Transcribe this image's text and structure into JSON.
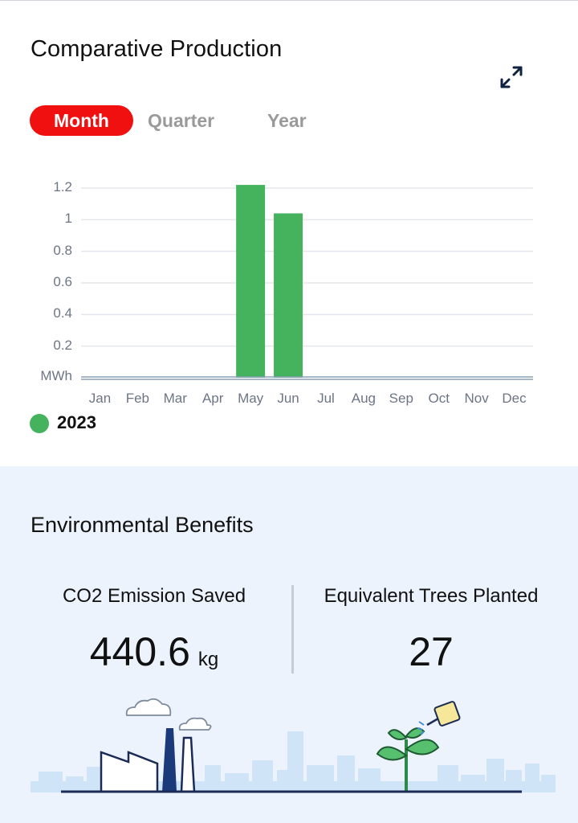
{
  "production": {
    "title": "Comparative Production",
    "tabs": [
      "Month",
      "Quarter",
      "Year"
    ],
    "active_tab": "Month",
    "expand_icon": "expand-arrows-icon"
  },
  "chart_data": {
    "type": "bar",
    "categories": [
      "Jan",
      "Feb",
      "Mar",
      "Apr",
      "May",
      "Jun",
      "Jul",
      "Aug",
      "Sep",
      "Oct",
      "Nov",
      "Dec"
    ],
    "series": [
      {
        "name": "2023",
        "values": [
          0,
          0,
          0,
          0,
          1.22,
          1.04,
          0,
          0,
          0,
          0,
          0,
          0
        ],
        "color": "#45b35e"
      }
    ],
    "ylabel": "MWh",
    "yticks": [
      "1.2",
      "1",
      "0.8",
      "0.6",
      "0.4",
      "0.2"
    ],
    "ylim": [
      0,
      1.2
    ],
    "grid": true,
    "legend": "bottom-left"
  },
  "environment": {
    "title": "Environmental Benefits",
    "co2_label": "CO2 Emission Saved",
    "co2_value": "440.6",
    "co2_unit": "kg",
    "trees_label": "Equivalent Trees Planted",
    "trees_value": "27"
  },
  "colors": {
    "accent": "#f01010",
    "bar": "#45b35e",
    "env_bg": "#ecf3fd"
  }
}
